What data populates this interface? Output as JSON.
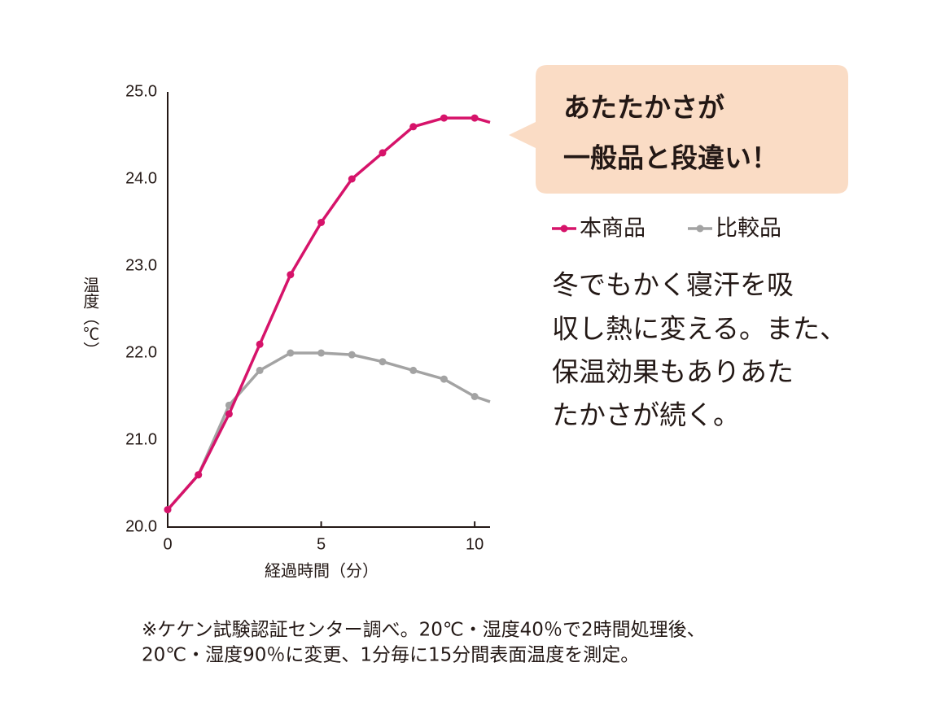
{
  "chart_data": {
    "type": "line",
    "y_label": "温度（℃）",
    "x_label": "経過時間（分）",
    "x": [
      0,
      1,
      2,
      3,
      4,
      5,
      6,
      7,
      8,
      9,
      10,
      10.5
    ],
    "series": [
      {
        "name": "本商品",
        "color": "#d6136a",
        "values": [
          20.2,
          20.6,
          21.3,
          22.1,
          22.9,
          23.5,
          24.0,
          24.3,
          24.6,
          24.7,
          24.7,
          24.65
        ]
      },
      {
        "name": "比較品",
        "color": "#a3a3a3",
        "values": [
          20.2,
          20.6,
          21.4,
          21.8,
          22.0,
          22.0,
          21.98,
          21.9,
          21.8,
          21.7,
          21.5,
          21.44
        ]
      }
    ],
    "xlim": [
      0,
      10.5
    ],
    "xticks": [
      0,
      5,
      10
    ],
    "ylim": [
      20,
      25
    ],
    "yticks": [
      {
        "value": 20,
        "label": "20.0"
      },
      {
        "value": 21,
        "label": "21.0"
      },
      {
        "value": 22,
        "label": "22.0"
      },
      {
        "value": 23,
        "label": "23.0"
      },
      {
        "value": 24,
        "label": "24.0"
      },
      {
        "value": 25,
        "label": "25.0"
      }
    ],
    "callout": [
      "あたたかさが",
      "一般品と段違い！"
    ],
    "description": [
      "冬でもかく寝汗を吸",
      "収し熱に変える。また、",
      "保温効果もありあた",
      "たかさが続く。"
    ],
    "footnote": [
      "※ケケン試験認証センター調べ。20℃・湿度40％で2時間処理後、",
      "20℃・湿度90％に変更、1分毎に15分間表面温度を測定。"
    ]
  }
}
